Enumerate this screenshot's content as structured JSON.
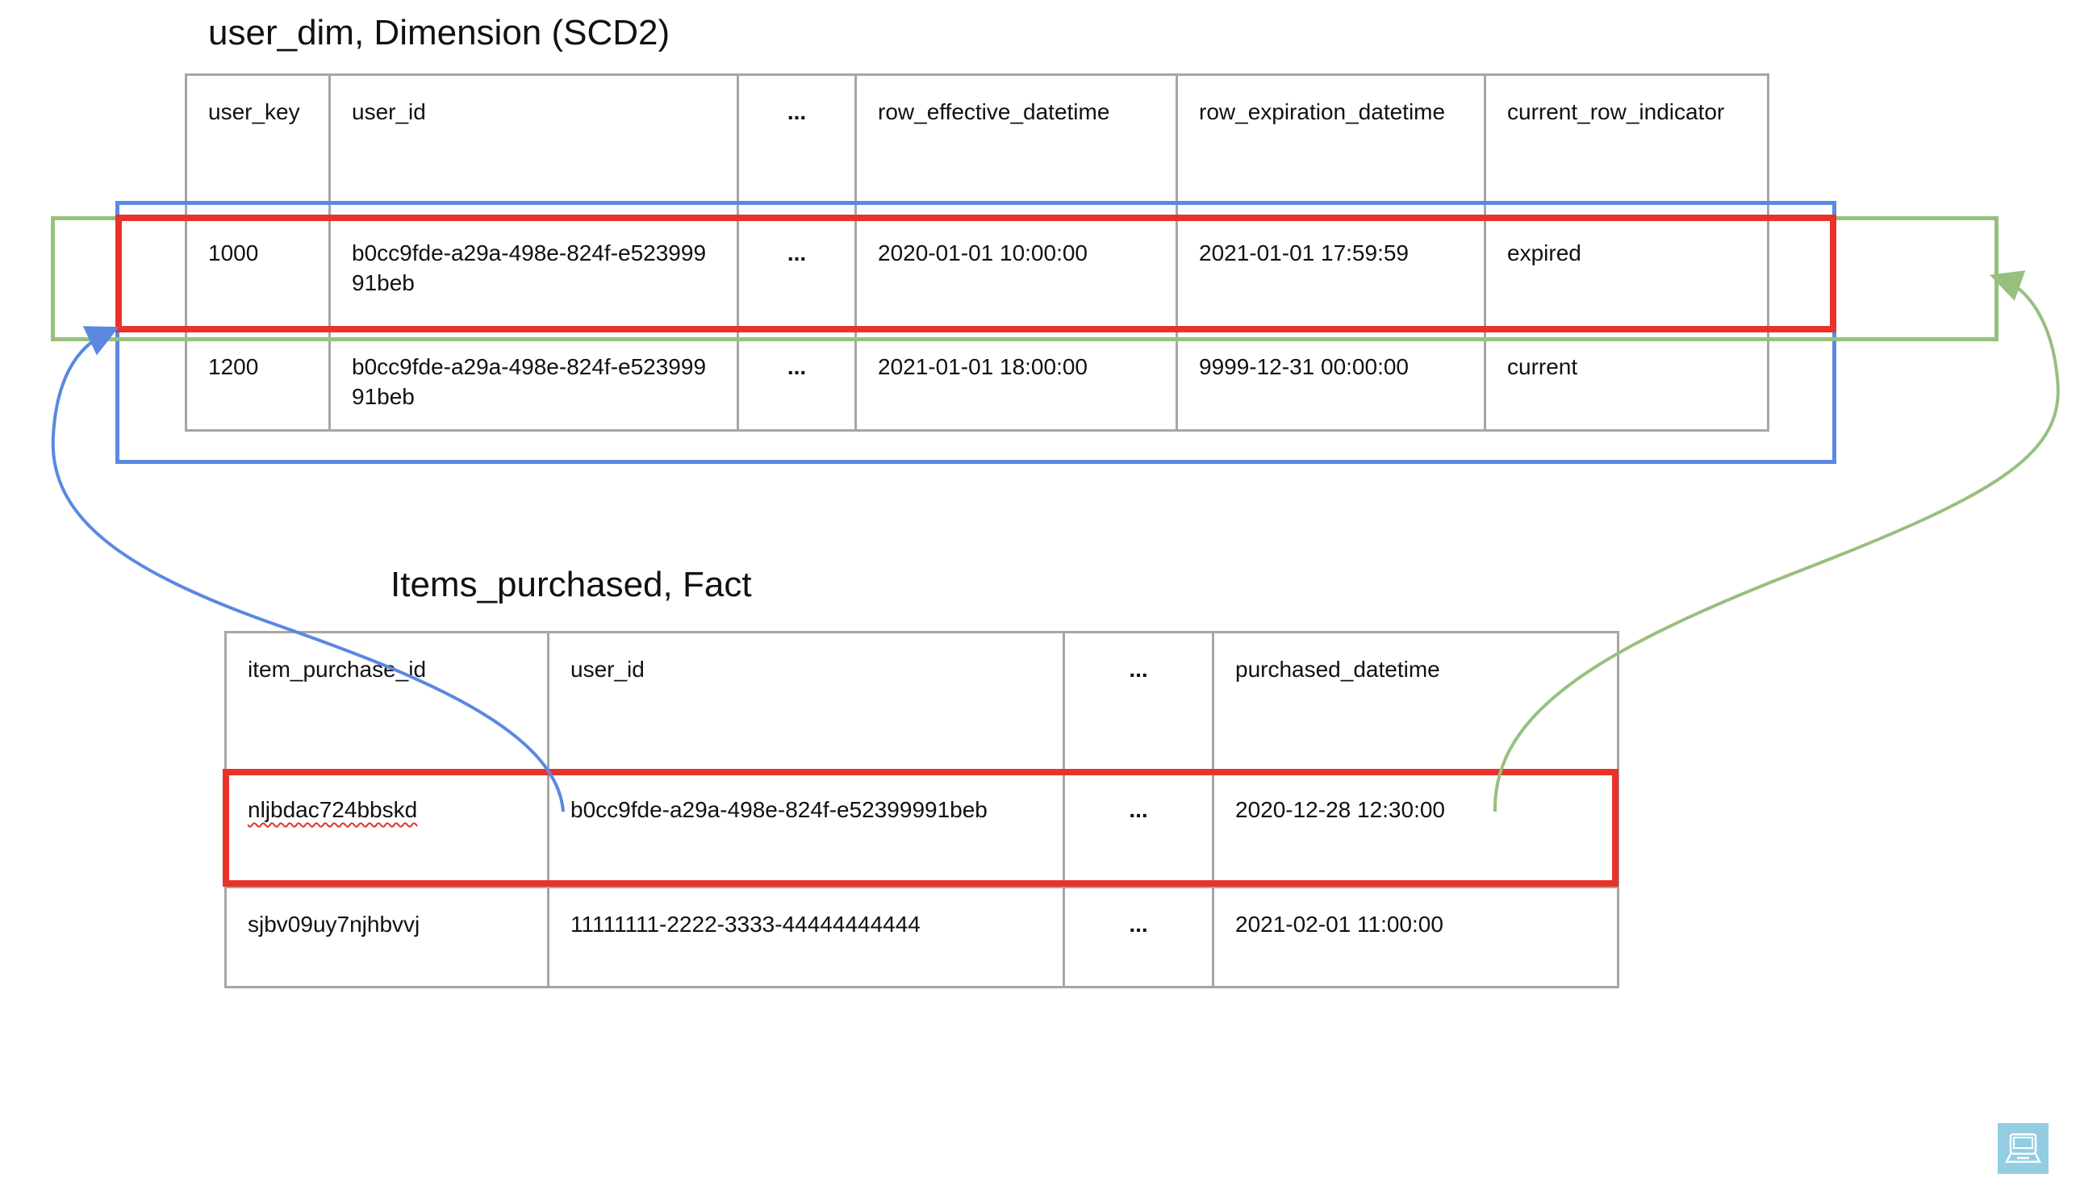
{
  "dimension": {
    "title": "user_dim, Dimension (SCD2)",
    "headers": [
      "user_key",
      "user_id",
      "...",
      "row_effective_datetime",
      "row_expiration_datetime",
      "current_row_indicator"
    ],
    "rows": [
      [
        "1000",
        "b0cc9fde-a29a-498e-824f-e52399991beb",
        "...",
        "2020-01-01 10:00:00",
        "2021-01-01 17:59:59",
        "expired"
      ],
      [
        "1200",
        "b0cc9fde-a29a-498e-824f-e52399991beb",
        "...",
        "2021-01-01 18:00:00",
        "9999-12-31 00:00:00",
        "current"
      ]
    ]
  },
  "fact": {
    "title": "Items_purchased, Fact",
    "headers": [
      "item_purchase_id",
      "user_id",
      "...",
      "purchased_datetime"
    ],
    "rows": [
      [
        "nljbdac724bbskd",
        "b0cc9fde-a29a-498e-824f-e52399991beb",
        "...",
        "2020-12-28 12:30:00"
      ],
      [
        "sjbv09uy7njhbvvj",
        "11111111-2222-3333-44444444444",
        "...",
        "2021-02-01 11:00:00"
      ]
    ]
  },
  "colors": {
    "highlight_red": "#e8322a",
    "user_id_match_blue": "#5b88e0",
    "time_match_green": "#97c07e",
    "grid_grey": "#a6a6a6",
    "icon_bg": "#92cde2"
  },
  "icons": {
    "corner": "laptop-icon"
  }
}
